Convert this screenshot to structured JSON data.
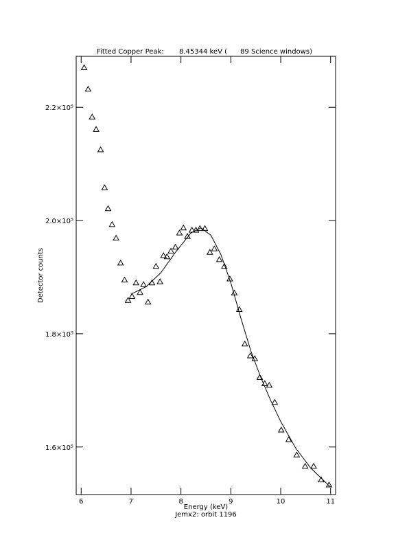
{
  "chart_data": {
    "type": "scatter",
    "title": "Fitted Copper Peak:       8.45344 keV (      89 Science windows)",
    "x_label": "Energy (keV)",
    "y_label": "Detector counts",
    "subtitle": "Jemx2: orbit 1196",
    "xlim": [
      5.9,
      11.1
    ],
    "ylim": [
      151600,
      229000
    ],
    "xticks": [
      6,
      7,
      8,
      9,
      10,
      11
    ],
    "yticks": [
      {
        "value": 160000,
        "label": "1.6×10⁵"
      },
      {
        "value": 180000,
        "label": "1.8×10⁵"
      },
      {
        "value": 200000,
        "label": "2.0×10⁵"
      },
      {
        "value": 220000,
        "label": "2.2×10⁵"
      }
    ],
    "series": [
      {
        "type": "scatter",
        "marker": "triangle",
        "color": "#000000",
        "x": [
          6.06,
          6.14,
          6.22,
          6.3,
          6.39,
          6.47,
          6.54,
          6.62,
          6.7,
          6.79,
          6.87,
          6.94,
          7.02,
          7.1,
          7.18,
          7.25,
          7.34,
          7.42,
          7.5,
          7.58,
          7.65,
          7.72,
          7.8,
          7.89,
          7.97,
          8.05,
          8.13,
          8.22,
          8.3,
          8.38,
          8.48,
          8.58,
          8.67,
          8.77,
          8.87,
          8.98,
          9.07,
          9.17,
          9.28,
          9.39,
          9.48,
          9.58,
          9.68,
          9.77,
          9.88,
          10.01,
          10.16,
          10.32,
          10.49,
          10.66,
          10.81,
          10.97
        ],
        "values": [
          227000,
          223200,
          218300,
          216100,
          212500,
          205800,
          202100,
          199300,
          196900,
          192500,
          189500,
          185900,
          186600,
          189000,
          187300,
          188700,
          185600,
          189000,
          191900,
          189200,
          193800,
          193600,
          194600,
          195300,
          197800,
          198700,
          197200,
          198300,
          198300,
          198600,
          198600,
          194400,
          195000,
          193100,
          191900,
          189700,
          187200,
          184300,
          178200,
          176100,
          175600,
          172300,
          171200,
          170900,
          167900,
          163000,
          161300,
          158600,
          156600,
          156600,
          154200,
          153300
        ]
      },
      {
        "type": "line",
        "color": "#000000",
        "x": [
          7.0,
          7.3,
          7.6,
          7.9,
          8.2,
          8.4,
          8.6,
          8.8,
          9.0,
          9.2,
          9.4,
          9.6,
          9.8,
          10.0,
          10.3,
          10.6,
          11.0
        ],
        "values": [
          187000,
          188300,
          190800,
          194500,
          197800,
          198700,
          197400,
          194000,
          189000,
          182800,
          177000,
          172300,
          168200,
          164500,
          159800,
          156300,
          152900
        ]
      }
    ]
  }
}
